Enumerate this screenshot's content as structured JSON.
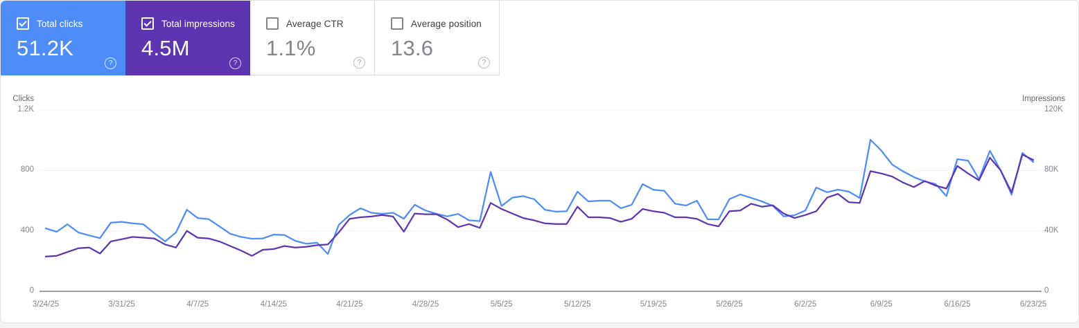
{
  "cards": [
    {
      "label": "Total clicks",
      "value": "51.2K",
      "selected": true,
      "color": "#4e8df7"
    },
    {
      "label": "Total impressions",
      "value": "4.5M",
      "selected": true,
      "color": "#5e35b1"
    },
    {
      "label": "Average CTR",
      "value": "1.1%",
      "selected": false,
      "color": "#ffffff"
    },
    {
      "label": "Average position",
      "value": "13.6",
      "selected": false,
      "color": "#ffffff"
    }
  ],
  "icons": {
    "help_glyph": "?"
  },
  "colors": {
    "clicks_accent": "#4e8df7",
    "impressions_accent": "#5e35b1",
    "gridline": "#f1f3f4",
    "axis_baseline": "#9aa0a6",
    "tick_text": "#80868b",
    "axis_title_text": "#5f6368"
  },
  "chart_data": {
    "type": "line",
    "frequency": "daily",
    "x_start": "3/24/25",
    "x_end": "6/23/25",
    "x_tick_labels": [
      "3/24/25",
      "3/31/25",
      "4/7/25",
      "4/14/25",
      "4/21/25",
      "4/28/25",
      "5/5/25",
      "5/12/25",
      "5/19/25",
      "5/26/25",
      "6/2/25",
      "6/9/25",
      "6/16/25",
      "6/23/25"
    ],
    "left_axis": {
      "label": "Clicks",
      "ticks": [
        "0",
        "400",
        "800",
        "1.2K"
      ],
      "max": 1200
    },
    "right_axis": {
      "label": "Impressions",
      "ticks": [
        "0",
        "40K",
        "80K",
        "120K"
      ],
      "max": 120000
    },
    "grid": "horizontal",
    "legend_position": "none",
    "series": [
      {
        "name": "Clicks",
        "axis": "left",
        "color": "#4e8df7",
        "values": [
          417,
          394,
          444,
          390,
          370,
          352,
          455,
          460,
          450,
          444,
          385,
          330,
          390,
          540,
          485,
          478,
          430,
          381,
          360,
          348,
          350,
          375,
          373,
          334,
          315,
          322,
          247,
          440,
          505,
          550,
          520,
          513,
          520,
          481,
          573,
          535,
          513,
          496,
          512,
          470,
          465,
          790,
          565,
          620,
          630,
          610,
          540,
          527,
          530,
          660,
          595,
          600,
          600,
          550,
          573,
          710,
          672,
          665,
          580,
          568,
          600,
          477,
          476,
          610,
          641,
          619,
          595,
          565,
          496,
          504,
          535,
          687,
          656,
          673,
          660,
          618,
          1003,
          931,
          839,
          794,
          756,
          728,
          710,
          630,
          875,
          865,
          742,
          930,
          800,
          640,
          916,
          856
        ]
      },
      {
        "name": "Impressions",
        "axis": "right",
        "color": "#5e35b1",
        "values": [
          23000,
          23500,
          26000,
          28500,
          29000,
          25000,
          33000,
          34500,
          36000,
          35500,
          35000,
          31000,
          29000,
          40000,
          35500,
          35000,
          33000,
          30000,
          27000,
          23500,
          27500,
          28000,
          30000,
          29000,
          29500,
          30500,
          31000,
          39000,
          48000,
          49000,
          49500,
          50500,
          49500,
          39500,
          51500,
          51000,
          51000,
          47500,
          42500,
          44500,
          42000,
          58500,
          54500,
          51500,
          48500,
          47000,
          45000,
          44500,
          44500,
          56000,
          49000,
          49000,
          48500,
          46000,
          48000,
          54500,
          53000,
          52000,
          49000,
          49000,
          48000,
          44500,
          43000,
          53000,
          53500,
          58000,
          56000,
          57000,
          51500,
          48500,
          50500,
          53000,
          62000,
          64500,
          59000,
          58500,
          79500,
          78000,
          76000,
          72000,
          69000,
          73000,
          70000,
          68000,
          83000,
          78000,
          73500,
          88500,
          80000,
          65500,
          90500,
          87000
        ]
      }
    ]
  }
}
